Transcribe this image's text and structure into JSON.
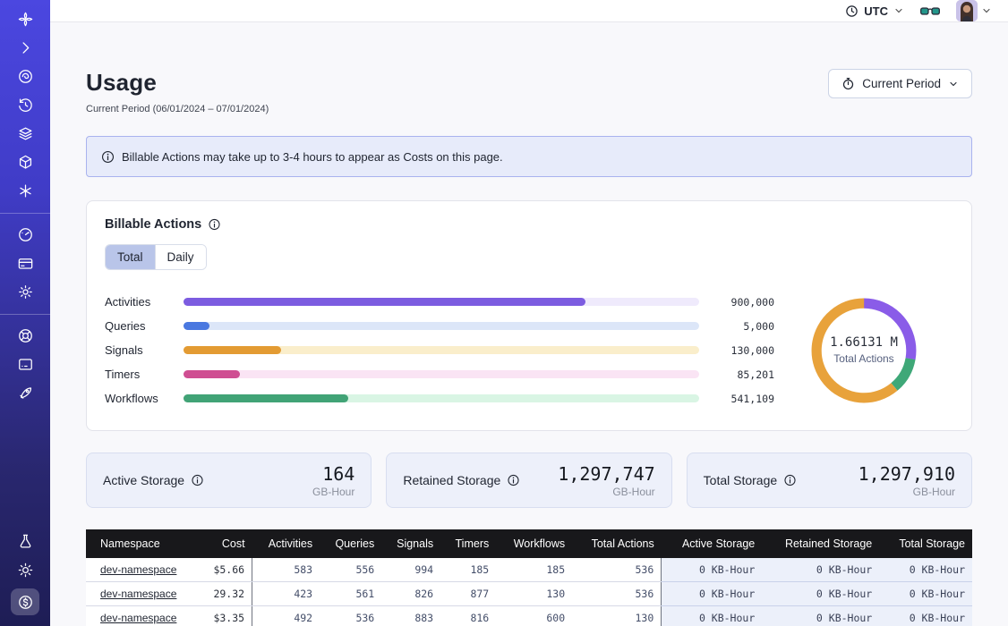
{
  "topbar": {
    "timezone": "UTC"
  },
  "page": {
    "title": "Usage",
    "subtitle": "Current Period (06/01/2024 – 07/01/2024)",
    "period_button_label": "Current Period"
  },
  "banner": {
    "text": "Billable Actions may take up to 3-4 hours to appear as Costs on this page."
  },
  "billable": {
    "title": "Billable Actions",
    "tabs": [
      "Total",
      "Daily"
    ],
    "active_tab": "Total"
  },
  "chart_data": [
    {
      "type": "bar",
      "orientation": "horizontal",
      "title": "Billable Actions (Total)",
      "categories": [
        "Activities",
        "Queries",
        "Signals",
        "Timers",
        "Workflows"
      ],
      "values": [
        900000,
        5000,
        130000,
        85201,
        541109
      ],
      "value_labels": [
        "900,000",
        "5,000",
        "130,000",
        "85,201",
        "541,109"
      ],
      "fill_pct": [
        78,
        5,
        19,
        11,
        32
      ],
      "bar_colors": [
        "#7c5ce0",
        "#4a78e0",
        "#e39b33",
        "#cf4e92",
        "#41a376"
      ],
      "track_colors": [
        "#efeafc",
        "#dce6f8",
        "#faeecb",
        "#fae4f4",
        "#d9f5e4"
      ]
    },
    {
      "type": "pie",
      "title": "Total Actions donut",
      "center_value": "1.66131 M",
      "center_label": "Total Actions",
      "segments": [
        {
          "name": "purple",
          "color": "#8a5ce8",
          "deg": 100
        },
        {
          "name": "green",
          "color": "#3fa878",
          "deg": 40
        },
        {
          "name": "orange",
          "color": "#e8a23b",
          "deg": 220
        }
      ]
    }
  ],
  "storage_cards": [
    {
      "label": "Active Storage",
      "value": "164",
      "unit": "GB-Hour"
    },
    {
      "label": "Retained Storage",
      "value": "1,297,747",
      "unit": "GB-Hour"
    },
    {
      "label": "Total Storage",
      "value": "1,297,910",
      "unit": "GB-Hour"
    }
  ],
  "table": {
    "columns": [
      "Namespace",
      "Cost",
      "Activities",
      "Queries",
      "Signals",
      "Timers",
      "Workflows",
      "Total Actions",
      "Active Storage",
      "Retained Storage",
      "Total Storage"
    ],
    "rows": [
      [
        "dev-namespace",
        "$5.66",
        "583",
        "556",
        "994",
        "185",
        "185",
        "536",
        "0 KB-Hour",
        "0 KB-Hour",
        "0 KB-Hour"
      ],
      [
        "dev-namespace",
        "29.32",
        "423",
        "561",
        "826",
        "877",
        "130",
        "536",
        "0 KB-Hour",
        "0 KB-Hour",
        "0 KB-Hour"
      ],
      [
        "dev-namespace",
        "$3.35",
        "492",
        "536",
        "883",
        "816",
        "600",
        "130",
        "0 KB-Hour",
        "0 KB-Hour",
        "0 KB-Hour"
      ]
    ]
  },
  "sidebar": {
    "items_top": [
      "temporal-logo",
      "collapse-chevron",
      "namespaces",
      "history",
      "layers",
      "deployments",
      "schedules"
    ],
    "items_mid": [
      "usage-gauge",
      "billing-card",
      "settings-gear"
    ],
    "items_low": [
      "support-lifebuoy",
      "feedback-terminal",
      "getting-started-rocket"
    ],
    "items_bottom": [
      "labs-flask",
      "theme-sun",
      "pricing-dollar"
    ]
  }
}
